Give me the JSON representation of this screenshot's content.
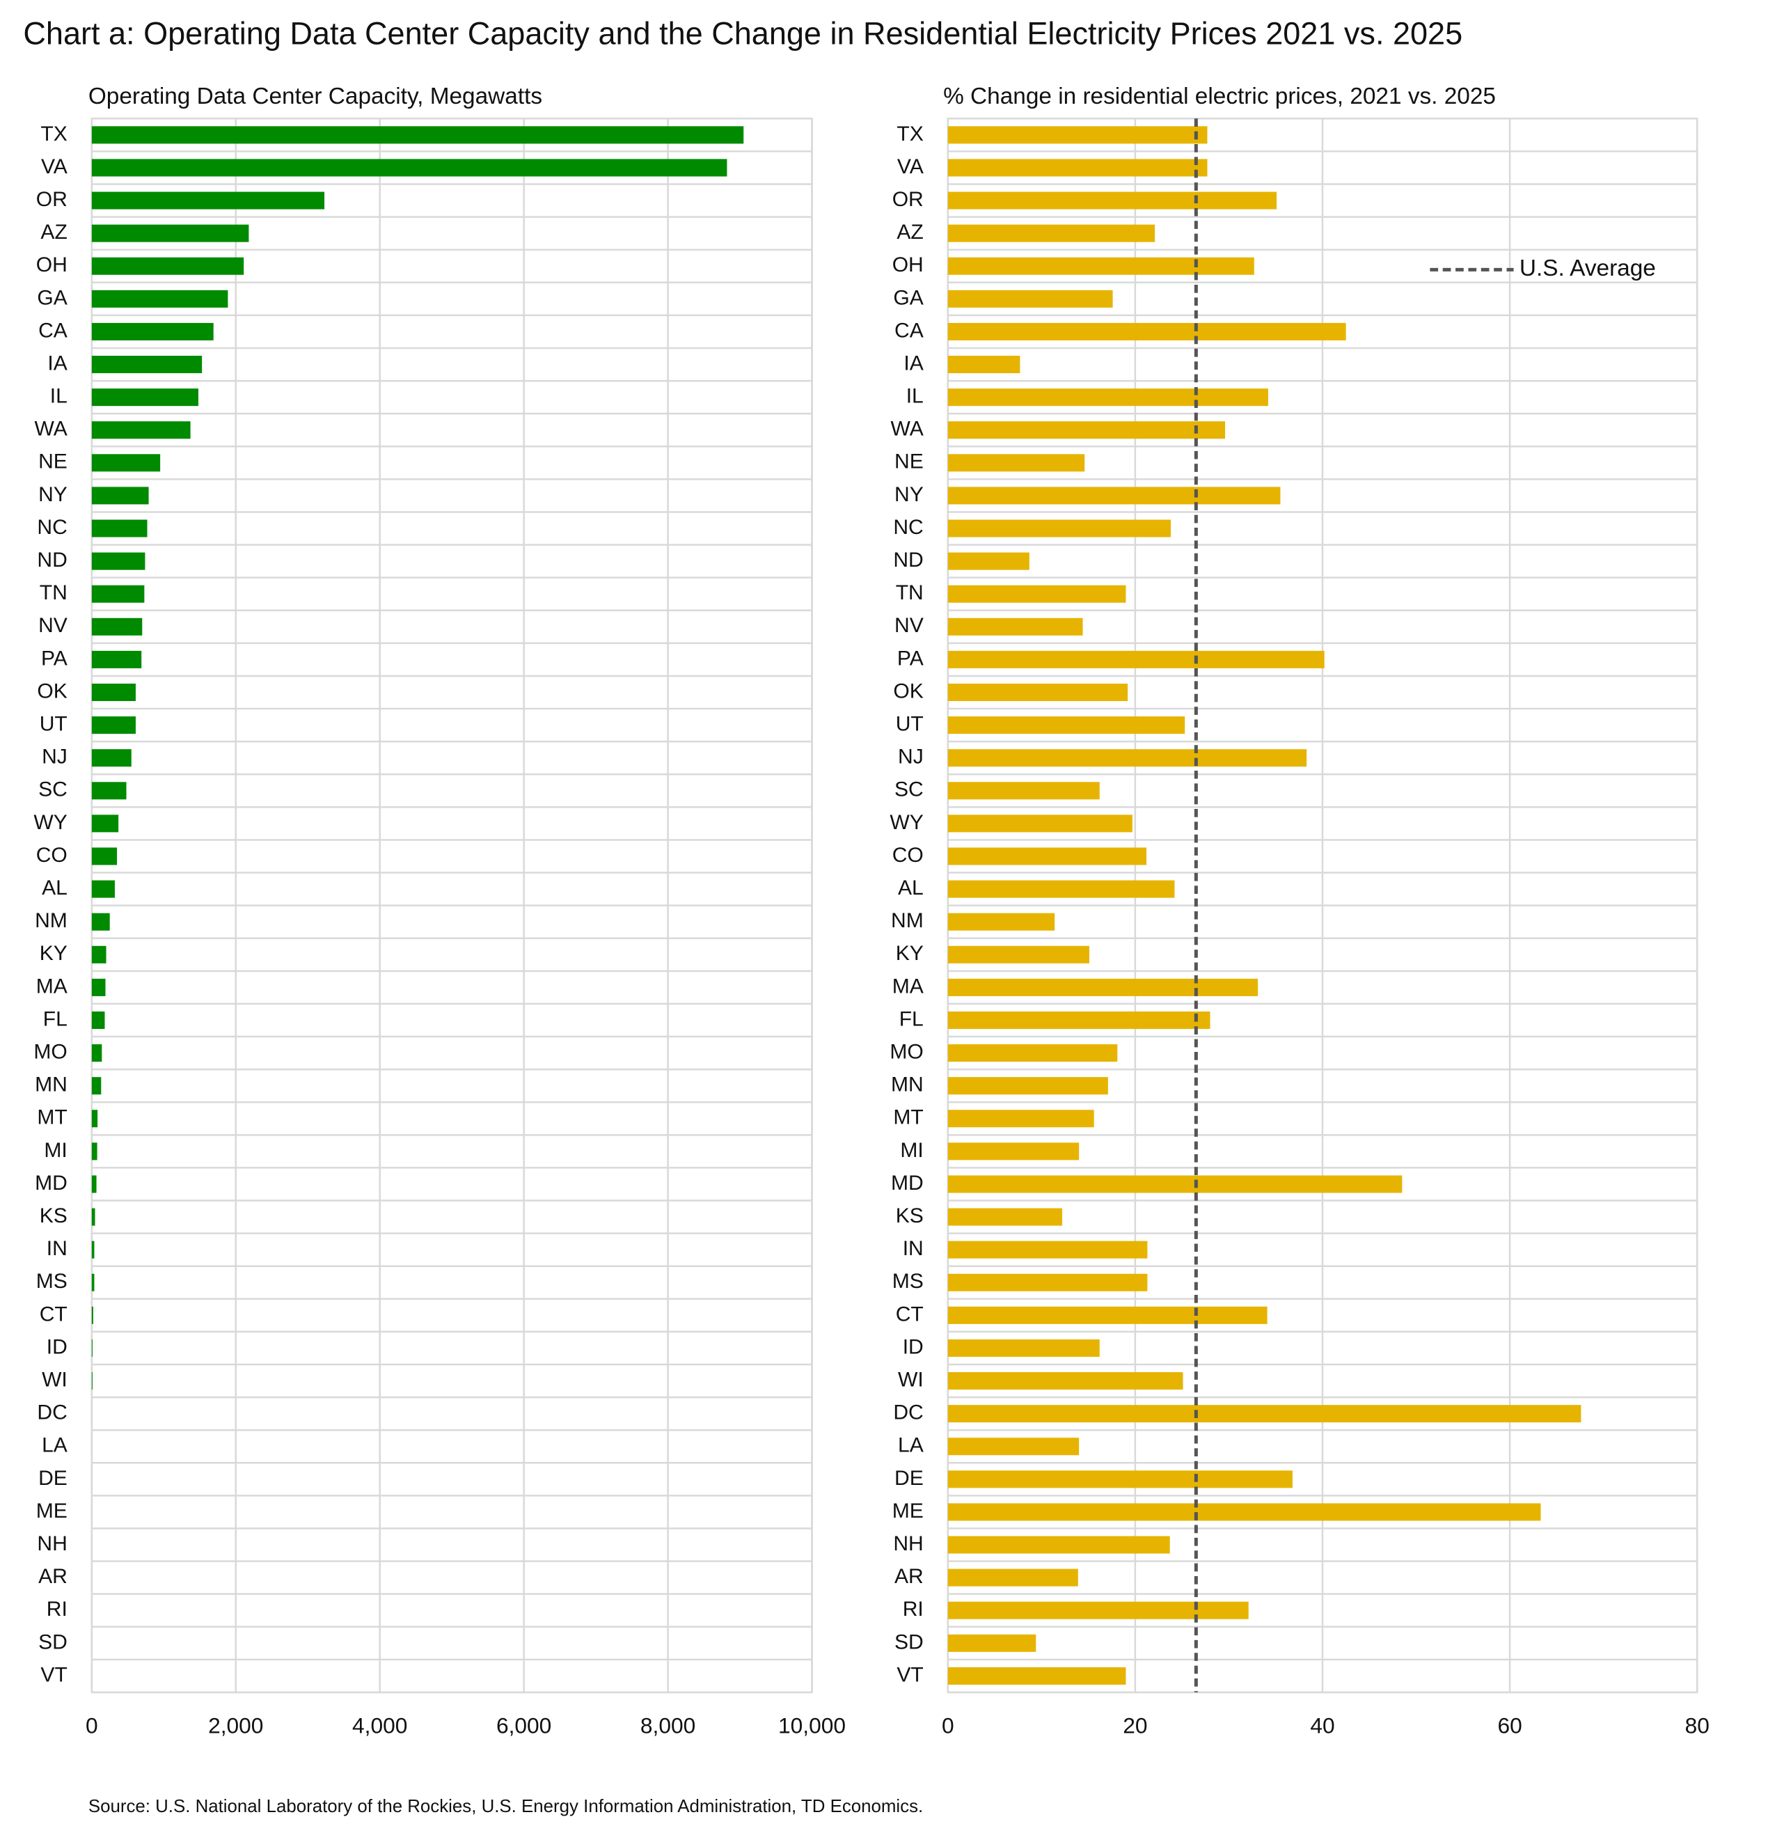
{
  "title": "Chart a: Operating Data Center Capacity and the Change in Residential Electricity Prices 2021 vs. 2025",
  "source": "Source: U.S. National Laboratory of the Rockies,  U.S. Energy Information Administration, TD Economics.",
  "chart_data": [
    {
      "type": "barh",
      "subtitle": "Operating Data Center Capacity, Megawatts",
      "categories": [
        "TX",
        "VA",
        "OR",
        "AZ",
        "OH",
        "GA",
        "CA",
        "IA",
        "IL",
        "WA",
        "NE",
        "NY",
        "NC",
        "ND",
        "TN",
        "NV",
        "PA",
        "OK",
        "UT",
        "NJ",
        "SC",
        "WY",
        "CO",
        "AL",
        "NM",
        "KY",
        "MA",
        "FL",
        "MO",
        "MN",
        "MT",
        "MI",
        "MD",
        "KS",
        "IN",
        "MS",
        "CT",
        "ID",
        "WI",
        "DC",
        "LA",
        "DE",
        "ME",
        "NH",
        "AR",
        "RI",
        "SD",
        "VT"
      ],
      "values": [
        9050,
        8820,
        3230,
        2180,
        2110,
        1890,
        1690,
        1530,
        1480,
        1370,
        950,
        790,
        770,
        740,
        730,
        700,
        690,
        610,
        610,
        550,
        480,
        370,
        350,
        320,
        250,
        200,
        190,
        180,
        140,
        130,
        80,
        75,
        65,
        45,
        35,
        35,
        20,
        10,
        10,
        0,
        0,
        0,
        0,
        0,
        0,
        0,
        0,
        0
      ],
      "color": "#008a00",
      "xlim": [
        0,
        10000
      ],
      "xticks": [
        0,
        {
          "value": 2000,
          "label": "2,000"
        },
        {
          "value": 4000,
          "label": "4,000"
        },
        {
          "value": 6000,
          "label": "6,000"
        },
        {
          "value": 8000,
          "label": "8,000"
        },
        {
          "value": 10000,
          "label": "10,000"
        }
      ],
      "grid": true
    },
    {
      "type": "barh",
      "subtitle": "% Change in residential electric prices, 2021 vs. 2025",
      "categories": [
        "TX",
        "VA",
        "OR",
        "AZ",
        "OH",
        "GA",
        "CA",
        "IA",
        "IL",
        "WA",
        "NE",
        "NY",
        "NC",
        "ND",
        "TN",
        "NV",
        "PA",
        "OK",
        "UT",
        "NJ",
        "SC",
        "WY",
        "CO",
        "AL",
        "NM",
        "KY",
        "MA",
        "FL",
        "MO",
        "MN",
        "MT",
        "MI",
        "MD",
        "KS",
        "IN",
        "MS",
        "CT",
        "ID",
        "WI",
        "DC",
        "LA",
        "DE",
        "ME",
        "NH",
        "AR",
        "RI",
        "SD",
        "VT"
      ],
      "values": [
        27.7,
        27.7,
        35.1,
        22.1,
        32.7,
        17.6,
        42.5,
        7.7,
        34.2,
        29.6,
        14.6,
        35.5,
        23.8,
        8.7,
        19.0,
        14.4,
        40.2,
        19.2,
        25.3,
        38.3,
        16.2,
        19.7,
        21.2,
        24.2,
        11.4,
        15.1,
        33.1,
        28.0,
        18.1,
        17.1,
        15.6,
        14.0,
        48.5,
        12.2,
        21.3,
        21.3,
        34.1,
        16.2,
        25.1,
        67.6,
        14.0,
        36.8,
        63.3,
        23.7,
        13.9,
        32.1,
        9.4,
        19.0
      ],
      "color": "#e6b400",
      "xlim": [
        0,
        80
      ],
      "xticks": [
        0,
        20,
        40,
        60,
        80
      ],
      "grid": true,
      "reference_lines": [
        {
          "name": "U.S. Average",
          "value": 26.5,
          "color": "#555555"
        }
      ],
      "legend": "upper right"
    }
  ]
}
